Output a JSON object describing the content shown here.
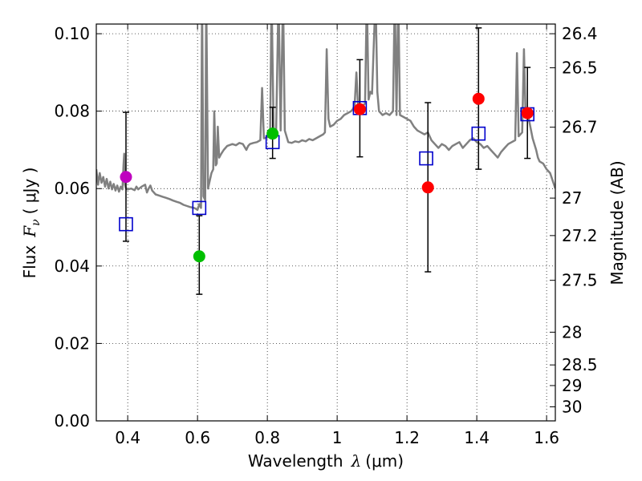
{
  "chart_data": {
    "type": "scatter",
    "xlabel": "Wavelength",
    "xlabel_symbol": "λ",
    "xlabel_unit": "(μm)",
    "ylabel": "Flux",
    "ylabel_symbol": "F",
    "ylabel_subscript": "ν",
    "ylabel_unit": "( μJy )",
    "ylabel_right": "Magnitude (AB)",
    "xlim": [
      0.31,
      1.625
    ],
    "ylim": [
      0.0,
      0.1025
    ],
    "grid": true,
    "x_ticks": [
      {
        "value": 0.4,
        "label": "0.4"
      },
      {
        "value": 0.6,
        "label": "0.6"
      },
      {
        "value": 0.8,
        "label": "0.8"
      },
      {
        "value": 1.0,
        "label": "1"
      },
      {
        "value": 1.2,
        "label": "1.2"
      },
      {
        "value": 1.4,
        "label": "1.4"
      },
      {
        "value": 1.6,
        "label": "1.6"
      }
    ],
    "y_ticks": [
      {
        "value": 0.0,
        "label": "0.00"
      },
      {
        "value": 0.02,
        "label": "0.02"
      },
      {
        "value": 0.04,
        "label": "0.04"
      },
      {
        "value": 0.06,
        "label": "0.06"
      },
      {
        "value": 0.08,
        "label": "0.08"
      },
      {
        "value": 0.1,
        "label": "0.10"
      }
    ],
    "mag_ticks": [
      {
        "value": 26.4,
        "label": "26.4"
      },
      {
        "value": 26.5,
        "label": "26.5"
      },
      {
        "value": 26.7,
        "label": "26.7"
      },
      {
        "value": 27.0,
        "label": "27"
      },
      {
        "value": 27.2,
        "label": "27.2"
      },
      {
        "value": 27.5,
        "label": "27.5"
      },
      {
        "value": 28.0,
        "label": "28"
      },
      {
        "value": 28.5,
        "label": "28.5"
      },
      {
        "value": 29.0,
        "label": "29"
      },
      {
        "value": 30.0,
        "label": "30"
      }
    ],
    "observed": [
      {
        "x": 0.395,
        "y": 0.063,
        "err_lo": 0.0464,
        "err_hi": 0.0797,
        "color": "#bf00bf"
      },
      {
        "x": 0.605,
        "y": 0.0425,
        "err_lo": 0.0327,
        "err_hi": 0.053,
        "color": "#00bf00"
      },
      {
        "x": 0.815,
        "y": 0.0742,
        "err_lo": 0.0678,
        "err_hi": 0.081,
        "color": "#00bf00"
      },
      {
        "x": 1.065,
        "y": 0.0805,
        "err_lo": 0.0682,
        "err_hi": 0.0933,
        "color": "#ff0000"
      },
      {
        "x": 1.26,
        "y": 0.0603,
        "err_lo": 0.0385,
        "err_hi": 0.0822,
        "color": "#ff0000"
      },
      {
        "x": 1.405,
        "y": 0.0832,
        "err_lo": 0.065,
        "err_hi": 0.1015,
        "color": "#ff0000"
      },
      {
        "x": 1.545,
        "y": 0.0795,
        "err_lo": 0.0678,
        "err_hi": 0.0913,
        "color": "#ff0000"
      }
    ],
    "model_photometry": [
      {
        "x": 0.395,
        "y": 0.0508
      },
      {
        "x": 0.605,
        "y": 0.055
      },
      {
        "x": 0.815,
        "y": 0.072
      },
      {
        "x": 1.065,
        "y": 0.0808
      },
      {
        "x": 1.255,
        "y": 0.0678
      },
      {
        "x": 1.405,
        "y": 0.0742
      },
      {
        "x": 1.545,
        "y": 0.0792
      }
    ],
    "sed_spectrum": [
      [
        0.31,
        0.065
      ],
      [
        0.315,
        0.061
      ],
      [
        0.32,
        0.064
      ],
      [
        0.325,
        0.0615
      ],
      [
        0.33,
        0.063
      ],
      [
        0.335,
        0.0605
      ],
      [
        0.34,
        0.0625
      ],
      [
        0.345,
        0.06
      ],
      [
        0.35,
        0.0618
      ],
      [
        0.355,
        0.0598
      ],
      [
        0.36,
        0.0612
      ],
      [
        0.365,
        0.0595
      ],
      [
        0.37,
        0.0608
      ],
      [
        0.375,
        0.0592
      ],
      [
        0.38,
        0.0605
      ],
      [
        0.385,
        0.0598
      ],
      [
        0.388,
        0.066
      ],
      [
        0.39,
        0.069
      ],
      [
        0.392,
        0.061
      ],
      [
        0.395,
        0.06
      ],
      [
        0.4,
        0.0598
      ],
      [
        0.41,
        0.06
      ],
      [
        0.42,
        0.0596
      ],
      [
        0.425,
        0.0605
      ],
      [
        0.43,
        0.0598
      ],
      [
        0.44,
        0.0605
      ],
      [
        0.45,
        0.061
      ],
      [
        0.455,
        0.059
      ],
      [
        0.46,
        0.06
      ],
      [
        0.465,
        0.0608
      ],
      [
        0.47,
        0.0595
      ],
      [
        0.48,
        0.0585
      ],
      [
        0.49,
        0.0582
      ],
      [
        0.5,
        0.0579
      ],
      [
        0.51,
        0.0576
      ],
      [
        0.52,
        0.0573
      ],
      [
        0.53,
        0.0569
      ],
      [
        0.54,
        0.0566
      ],
      [
        0.55,
        0.0563
      ],
      [
        0.56,
        0.0558
      ],
      [
        0.57,
        0.0555
      ],
      [
        0.58,
        0.0552
      ],
      [
        0.59,
        0.055
      ],
      [
        0.595,
        0.0548
      ],
      [
        0.6,
        0.0545
      ],
      [
        0.605,
        0.056
      ],
      [
        0.61,
        0.055
      ],
      [
        0.613,
        0.11
      ],
      [
        0.617,
        0.058
      ],
      [
        0.622,
        0.057
      ],
      [
        0.625,
        0.11
      ],
      [
        0.63,
        0.06
      ],
      [
        0.64,
        0.064
      ],
      [
        0.645,
        0.065
      ],
      [
        0.648,
        0.08
      ],
      [
        0.652,
        0.066
      ],
      [
        0.655,
        0.0665
      ],
      [
        0.658,
        0.076
      ],
      [
        0.662,
        0.068
      ],
      [
        0.668,
        0.069
      ],
      [
        0.675,
        0.07
      ],
      [
        0.685,
        0.071
      ],
      [
        0.7,
        0.0715
      ],
      [
        0.71,
        0.0712
      ],
      [
        0.72,
        0.0718
      ],
      [
        0.73,
        0.0715
      ],
      [
        0.74,
        0.07
      ],
      [
        0.745,
        0.071
      ],
      [
        0.75,
        0.0715
      ],
      [
        0.76,
        0.0718
      ],
      [
        0.77,
        0.072
      ],
      [
        0.78,
        0.0725
      ],
      [
        0.785,
        0.086
      ],
      [
        0.79,
        0.073
      ],
      [
        0.8,
        0.0732
      ],
      [
        0.808,
        0.074
      ],
      [
        0.812,
        0.11
      ],
      [
        0.818,
        0.075
      ],
      [
        0.825,
        0.074
      ],
      [
        0.832,
        0.11
      ],
      [
        0.838,
        0.075
      ],
      [
        0.845,
        0.11
      ],
      [
        0.85,
        0.075
      ],
      [
        0.86,
        0.072
      ],
      [
        0.87,
        0.0718
      ],
      [
        0.88,
        0.0722
      ],
      [
        0.89,
        0.072
      ],
      [
        0.9,
        0.0725
      ],
      [
        0.91,
        0.0722
      ],
      [
        0.92,
        0.0728
      ],
      [
        0.93,
        0.0725
      ],
      [
        0.94,
        0.073
      ],
      [
        0.95,
        0.0735
      ],
      [
        0.96,
        0.074
      ],
      [
        0.965,
        0.0745
      ],
      [
        0.97,
        0.096
      ],
      [
        0.975,
        0.078
      ],
      [
        0.98,
        0.076
      ],
      [
        0.99,
        0.0765
      ],
      [
        1.0,
        0.0775
      ],
      [
        1.01,
        0.078
      ],
      [
        1.02,
        0.079
      ],
      [
        1.03,
        0.0795
      ],
      [
        1.04,
        0.08
      ],
      [
        1.045,
        0.0805
      ],
      [
        1.05,
        0.0815
      ],
      [
        1.055,
        0.09
      ],
      [
        1.06,
        0.0815
      ],
      [
        1.065,
        0.081
      ],
      [
        1.07,
        0.081
      ],
      [
        1.08,
        0.082
      ],
      [
        1.085,
        0.11
      ],
      [
        1.09,
        0.083
      ],
      [
        1.095,
        0.085
      ],
      [
        1.1,
        0.0845
      ],
      [
        1.11,
        0.11
      ],
      [
        1.115,
        0.085
      ],
      [
        1.12,
        0.08
      ],
      [
        1.13,
        0.079
      ],
      [
        1.14,
        0.0795
      ],
      [
        1.15,
        0.079
      ],
      [
        1.16,
        0.08
      ],
      [
        1.165,
        0.11
      ],
      [
        1.17,
        0.079
      ],
      [
        1.175,
        0.11
      ],
      [
        1.18,
        0.079
      ],
      [
        1.19,
        0.0785
      ],
      [
        1.2,
        0.078
      ],
      [
        1.21,
        0.0775
      ],
      [
        1.22,
        0.076
      ],
      [
        1.23,
        0.075
      ],
      [
        1.24,
        0.0745
      ],
      [
        1.25,
        0.074
      ],
      [
        1.26,
        0.0745
      ],
      [
        1.27,
        0.0725
      ],
      [
        1.28,
        0.0715
      ],
      [
        1.29,
        0.0705
      ],
      [
        1.3,
        0.0715
      ],
      [
        1.31,
        0.071
      ],
      [
        1.32,
        0.07
      ],
      [
        1.33,
        0.071
      ],
      [
        1.34,
        0.0715
      ],
      [
        1.35,
        0.072
      ],
      [
        1.36,
        0.0705
      ],
      [
        1.37,
        0.0715
      ],
      [
        1.38,
        0.0725
      ],
      [
        1.39,
        0.073
      ],
      [
        1.4,
        0.072
      ],
      [
        1.41,
        0.0715
      ],
      [
        1.42,
        0.0705
      ],
      [
        1.43,
        0.071
      ],
      [
        1.44,
        0.07
      ],
      [
        1.45,
        0.069
      ],
      [
        1.46,
        0.068
      ],
      [
        1.47,
        0.0695
      ],
      [
        1.48,
        0.0705
      ],
      [
        1.49,
        0.0715
      ],
      [
        1.5,
        0.072
      ],
      [
        1.51,
        0.0725
      ],
      [
        1.515,
        0.095
      ],
      [
        1.52,
        0.0735
      ],
      [
        1.53,
        0.0745
      ],
      [
        1.535,
        0.096
      ],
      [
        1.54,
        0.0785
      ],
      [
        1.545,
        0.079
      ],
      [
        1.55,
        0.0775
      ],
      [
        1.56,
        0.073
      ],
      [
        1.57,
        0.07
      ],
      [
        1.575,
        0.068
      ],
      [
        1.58,
        0.067
      ],
      [
        1.59,
        0.0665
      ],
      [
        1.6,
        0.065
      ],
      [
        1.61,
        0.064
      ],
      [
        1.625,
        0.06
      ]
    ],
    "colors": {
      "sed_line": "#808080",
      "model_square": "#0000cc",
      "errorbar": "#000000",
      "grid": "#000000"
    }
  }
}
